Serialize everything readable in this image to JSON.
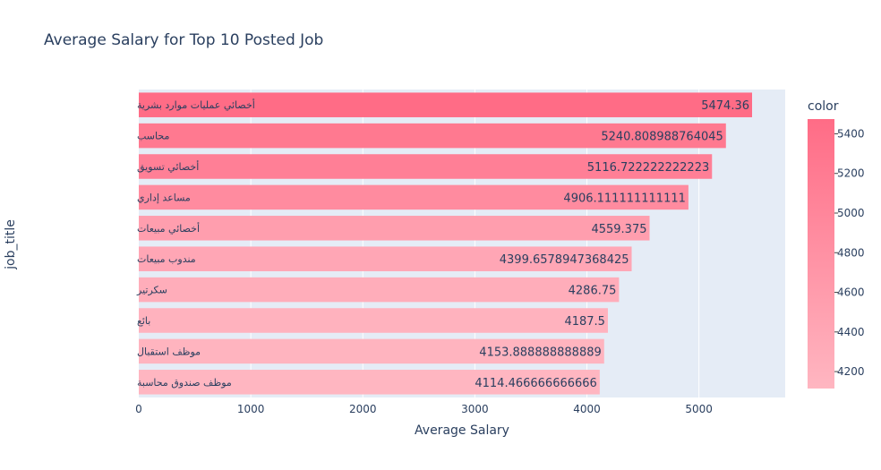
{
  "chart_data": {
    "type": "bar",
    "orientation": "horizontal",
    "title": "Average Salary for Top 10 Posted Job",
    "xlabel": "Average Salary",
    "ylabel": "job_title",
    "xlim": [
      0,
      5770
    ],
    "xticks": [
      0,
      1000,
      2000,
      3000,
      4000,
      5000
    ],
    "grid": true,
    "categories": [
      "أخصائي عمليات موارد بشرية",
      "محاسب",
      "أخصائي تسويق",
      "مساعد إداري",
      "أخصائي مبيعات",
      "مندوب مبيعات",
      "سكرتير",
      "بائع",
      "موظف استقبال",
      "موظف صندوق محاسبة"
    ],
    "values": [
      5474.36,
      5240.808988764045,
      5116.722222222223,
      4906.111111111111,
      4559.375,
      4399.6578947368425,
      4286.75,
      4187.5,
      4153.888888888889,
      4114.466666666666
    ],
    "value_labels": [
      "5474.36",
      "5240.808988764045",
      "5116.722222222223",
      "4906.111111111111",
      "4559.375",
      "4399.6578947368425",
      "4286.75",
      "4187.5",
      "4153.888888888889",
      "4114.466666666666"
    ],
    "colorbar": {
      "title": "color",
      "range": [
        4114.47,
        5474.36
      ],
      "ticks": [
        4200,
        4400,
        4600,
        4800,
        5000,
        5200,
        5400
      ],
      "color_low": "#ffb6c1",
      "color_high": "#ff6c86"
    },
    "colors": {
      "plot_bg": "#e5ecf6",
      "text": "#2a3f5f",
      "grid": "#ffffff"
    }
  }
}
